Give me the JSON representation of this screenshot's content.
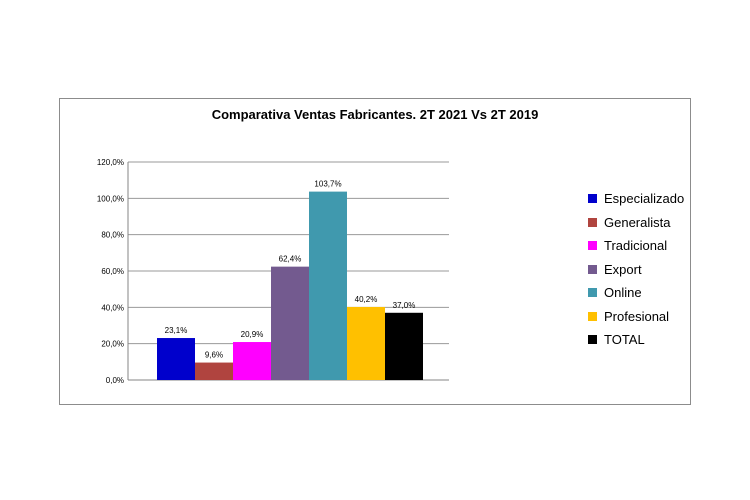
{
  "chart_data": {
    "type": "bar",
    "title": "Comparativa Ventas Fabricantes. 2T 2021 Vs 2T 2019",
    "xlabel": "",
    "ylabel": "",
    "ylim": [
      0,
      120
    ],
    "ytick_step": 20,
    "yticks": [
      "0,0%",
      "20,0%",
      "40,0%",
      "60,0%",
      "80,0%",
      "100,0%",
      "120,0%"
    ],
    "grid": true,
    "legend": "right",
    "categories": [
      "Especializado",
      "Generalista",
      "Tradicional",
      "Export",
      "Online",
      "Profesional",
      "TOTAL"
    ],
    "values": [
      23.1,
      9.6,
      20.9,
      62.4,
      103.7,
      40.2,
      37.0
    ],
    "value_labels": [
      "23,1%",
      "9,6%",
      "20,9%",
      "62,4%",
      "103,7%",
      "40,2%",
      "37,0%"
    ],
    "colors": [
      "#0000CC",
      "#B0443F",
      "#FF00FF",
      "#735A8F",
      "#4099AE",
      "#FFC000",
      "#000000"
    ]
  }
}
